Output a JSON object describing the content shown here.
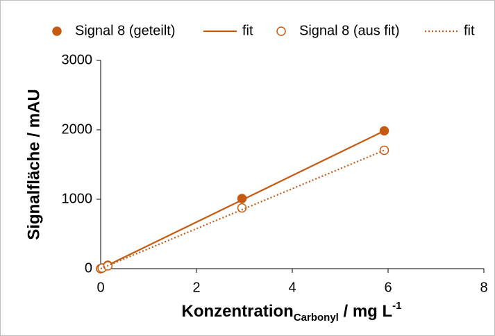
{
  "chart_data": {
    "type": "scatter",
    "x_label": {
      "main": "Konzentration",
      "sub": "Carbonyl",
      "rest": " / mg L",
      "sup": "-1"
    },
    "y_label": "Signalfläche / mAU",
    "xlim": [
      0,
      8
    ],
    "xticks": [
      0,
      2,
      4,
      6,
      8
    ],
    "ylim": [
      0,
      3000
    ],
    "yticks": [
      0,
      1000,
      2000,
      3000
    ],
    "grid": false,
    "legend": "top",
    "series": [
      {
        "name": "Signal 8 (geteilt)",
        "color": "#c55a11",
        "marker": "filled",
        "x": [
          0,
          0.03,
          0.15,
          2.95,
          5.92
        ],
        "values": [
          0,
          10,
          50,
          1010,
          1985
        ]
      },
      {
        "name": "fit",
        "color": "#c55a11",
        "line": "solid",
        "x": [
          0,
          5.92
        ],
        "values": [
          0,
          1985
        ]
      },
      {
        "name": "Signal 8 (aus fit)",
        "color": "#c55a11",
        "marker": "open",
        "x": [
          0,
          0.03,
          0.15,
          2.95,
          5.92
        ],
        "values": [
          0,
          8,
          40,
          875,
          1705
        ]
      },
      {
        "name": "fit",
        "color": "#c55a11",
        "line": "dotted",
        "x": [
          0,
          5.92
        ],
        "values": [
          0,
          1705
        ]
      }
    ]
  }
}
